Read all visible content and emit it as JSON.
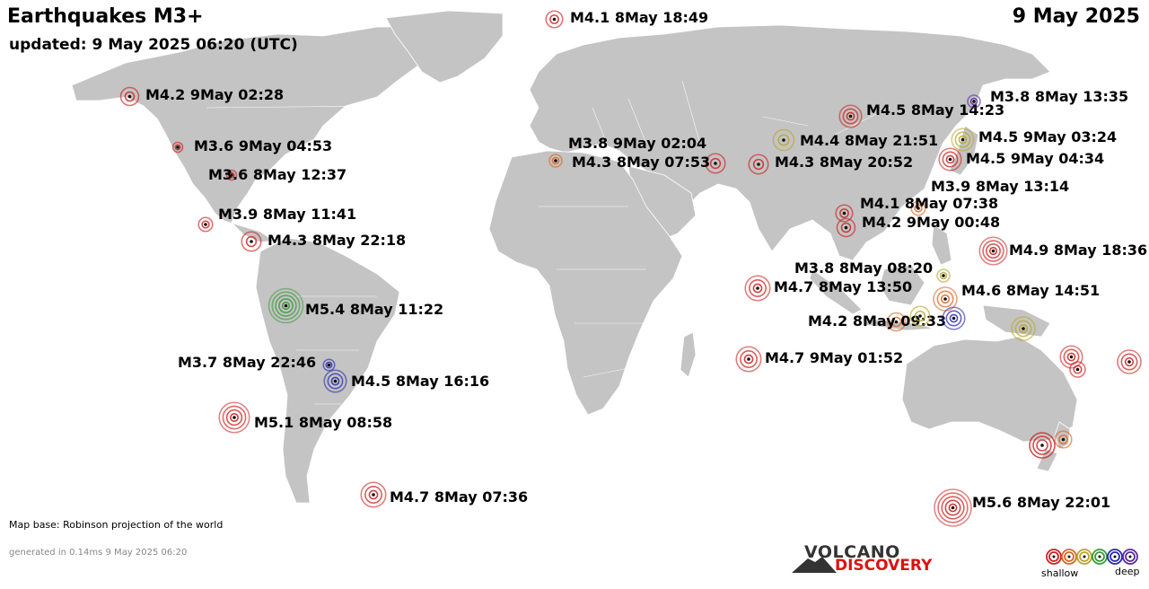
{
  "header": {
    "title": "Earthquakes M3+",
    "updated": "updated:  9 May 2025 06:20 (UTC)",
    "date": "9 May 2025"
  },
  "notes": {
    "map_base": "Map base: Robinson projection of the world",
    "generated": "generated in 0.14ms  9 May 2025 06:20"
  },
  "logo": {
    "top": "VOLCANO",
    "bottom": "DISCOVERY"
  },
  "legend": {
    "shallow": "shallow",
    "deep": "deep",
    "depth_colors": [
      "#cc2222",
      "#dd6622",
      "#b8a62a",
      "#3a9a3a",
      "#2a2ab0",
      "#5a2aa0"
    ]
  },
  "colors": {
    "ocean": "#ffffff",
    "land": "#c4c4c4",
    "border": "#ffffff"
  },
  "quakes": [
    {
      "label": "M4.1  8May 18:49",
      "magnitude": 4.1,
      "depth": "shallow",
      "color": "#cc2222"
    },
    {
      "label": "M4.2  9May 02:28",
      "magnitude": 4.2,
      "depth": "shallow",
      "color": "#cc2222"
    },
    {
      "label": "M3.6  9May 04:53",
      "magnitude": 3.6,
      "depth": "shallow",
      "color": "#cc2222"
    },
    {
      "label": "M3.6  8May 12:37",
      "magnitude": 3.6,
      "depth": "shallow",
      "color": "#cc2222"
    },
    {
      "label": "M3.9  8May 11:41",
      "magnitude": 3.9,
      "depth": "shallow",
      "color": "#cc2222"
    },
    {
      "label": "M4.3  8May 22:18",
      "magnitude": 4.3,
      "depth": "shallow",
      "color": "#cc2222"
    },
    {
      "label": "M5.4  8May 11:22",
      "magnitude": 5.4,
      "depth": "intermediate",
      "color": "#3a9a3a"
    },
    {
      "label": "M3.7  8May 22:46",
      "magnitude": 3.7,
      "depth": "deep",
      "color": "#2a2ab0"
    },
    {
      "label": "M4.5  8May 16:16",
      "magnitude": 4.5,
      "depth": "deep",
      "color": "#2a2ab0"
    },
    {
      "label": "M5.1  8May 08:58",
      "magnitude": 5.1,
      "depth": "shallow",
      "color": "#cc2222"
    },
    {
      "label": "M4.7  8May 07:36",
      "magnitude": 4.7,
      "depth": "shallow",
      "color": "#cc2222"
    },
    {
      "label": "M3.8  9May 02:04",
      "magnitude": 3.8,
      "depth": "shallow",
      "color": "#dd6622"
    },
    {
      "label": "M4.3  8May 07:53",
      "magnitude": 4.3,
      "depth": "shallow",
      "color": "#cc2222"
    },
    {
      "label": "M4.3  8May 20:52",
      "magnitude": 4.3,
      "depth": "shallow",
      "color": "#cc2222"
    },
    {
      "label": "M4.4  8May 21:51",
      "magnitude": 4.4,
      "depth": "intermediate",
      "color": "#b8a62a"
    },
    {
      "label": "M4.5  8May 14:23",
      "magnitude": 4.5,
      "depth": "shallow",
      "color": "#cc2222"
    },
    {
      "label": "M3.8  8May 13:35",
      "magnitude": 3.8,
      "depth": "deep",
      "color": "#5a2aa0"
    },
    {
      "label": "M4.5  9May 03:24",
      "magnitude": 4.5,
      "depth": "intermediate",
      "color": "#b8a62a"
    },
    {
      "label": "M4.5  9May 04:34",
      "magnitude": 4.5,
      "depth": "shallow",
      "color": "#cc2222"
    },
    {
      "label": "M3.9  8May 13:14",
      "magnitude": 3.9,
      "depth": "shallow",
      "color": "#dd6622"
    },
    {
      "label": "M4.1  8May 07:38",
      "magnitude": 4.1,
      "depth": "shallow",
      "color": "#cc2222"
    },
    {
      "label": "M4.2  9May 00:48",
      "magnitude": 4.2,
      "depth": "shallow",
      "color": "#cc2222"
    },
    {
      "label": "M4.9  8May 18:36",
      "magnitude": 4.9,
      "depth": "shallow",
      "color": "#cc2222"
    },
    {
      "label": "M3.8  8May 08:20",
      "magnitude": 3.8,
      "depth": "intermediate",
      "color": "#b8a62a"
    },
    {
      "label": "M4.7  8May 13:50",
      "magnitude": 4.7,
      "depth": "shallow",
      "color": "#cc2222"
    },
    {
      "label": "M4.6  8May 14:51",
      "magnitude": 4.6,
      "depth": "shallow",
      "color": "#dd6622"
    },
    {
      "label": "M4.2  8May 09:33",
      "magnitude": 4.2,
      "depth": "shallow",
      "color": "#dd6622"
    },
    {
      "label": "M4.7  9May 01:52",
      "magnitude": 4.7,
      "depth": "shallow",
      "color": "#cc2222"
    },
    {
      "label": "M5.6  8May 22:01",
      "magnitude": 5.6,
      "depth": "shallow",
      "color": "#cc2222"
    },
    {
      "label": "",
      "magnitude": 4.5,
      "depth": "deep",
      "color": "#2a2ab0"
    },
    {
      "label": "",
      "magnitude": 4.3,
      "depth": "intermediate",
      "color": "#b8a62a"
    },
    {
      "label": "",
      "magnitude": 4.6,
      "depth": "intermediate",
      "color": "#b8a62a"
    },
    {
      "label": "",
      "magnitude": 4.0,
      "depth": "shallow",
      "color": "#cc2222"
    },
    {
      "label": "",
      "magnitude": 4.5,
      "depth": "shallow",
      "color": "#cc2222"
    },
    {
      "label": "",
      "magnitude": 4.6,
      "depth": "shallow",
      "color": "#cc2222"
    },
    {
      "label": "",
      "magnitude": 4.1,
      "depth": "shallow",
      "color": "#dd6622"
    }
  ]
}
